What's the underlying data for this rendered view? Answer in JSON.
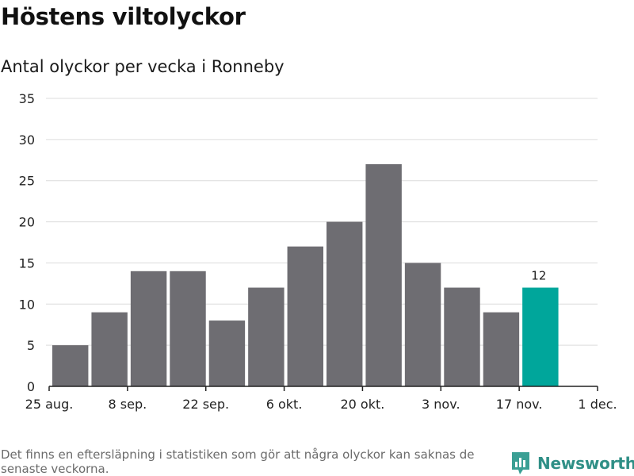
{
  "title": "Höstens viltolyckor",
  "subtitle": "Antal olyckor per vecka i Ronneby",
  "footnote": "Det finns en eftersläpning i statistiken som gör att några olyckor kan saknas de senaste veckorna.",
  "brand": {
    "name": "Newsworthy",
    "color": "#2f8f86"
  },
  "chart_data": {
    "type": "bar",
    "title": "Höstens viltolyckor",
    "subtitle": "Antal olyckor per vecka i Ronneby",
    "xlabel": "",
    "ylabel": "",
    "ylim": [
      0,
      35
    ],
    "yticks": [
      0,
      5,
      10,
      15,
      20,
      25,
      30,
      35
    ],
    "grid": true,
    "x_range": [
      "2025-08-25",
      "2025-12-01"
    ],
    "xticks": [
      {
        "date": "2025-08-25",
        "label": "25 aug."
      },
      {
        "date": "2025-09-08",
        "label": "8 sep."
      },
      {
        "date": "2025-09-22",
        "label": "22 sep."
      },
      {
        "date": "2025-10-06",
        "label": "6 okt."
      },
      {
        "date": "2025-10-20",
        "label": "20 okt."
      },
      {
        "date": "2025-11-03",
        "label": "3 nov."
      },
      {
        "date": "2025-11-17",
        "label": "17 nov."
      },
      {
        "date": "2025-12-01",
        "label": "1 dec."
      }
    ],
    "bar_color": "#6e6d72",
    "highlight_color": "#00a69b",
    "bars": [
      {
        "week_start": "2025-08-25",
        "value": 5
      },
      {
        "week_start": "2025-09-01",
        "value": 9
      },
      {
        "week_start": "2025-09-08",
        "value": 14
      },
      {
        "week_start": "2025-09-15",
        "value": 14
      },
      {
        "week_start": "2025-09-22",
        "value": 8
      },
      {
        "week_start": "2025-09-29",
        "value": 12
      },
      {
        "week_start": "2025-10-06",
        "value": 17
      },
      {
        "week_start": "2025-10-13",
        "value": 20
      },
      {
        "week_start": "2025-10-20",
        "value": 27
      },
      {
        "week_start": "2025-10-27",
        "value": 15
      },
      {
        "week_start": "2025-11-03",
        "value": 12
      },
      {
        "week_start": "2025-11-10",
        "value": 9
      },
      {
        "week_start": "2025-11-17",
        "value": 12,
        "highlight": true,
        "label": "12"
      }
    ]
  }
}
